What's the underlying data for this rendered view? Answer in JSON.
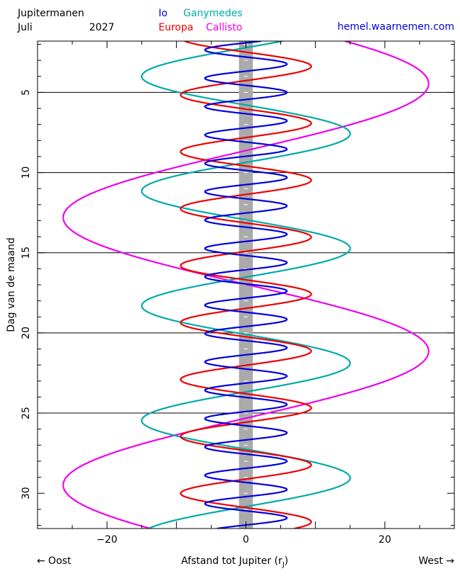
{
  "header": {
    "title": "Jupitermanen",
    "month": "Juli",
    "year": "2027",
    "website": "hemel.waarnemen.com"
  },
  "legend": [
    {
      "name": "Io",
      "color": "#0000dd"
    },
    {
      "name": "Ganymedes",
      "color": "#00aaaa"
    },
    {
      "name": "Europa",
      "color": "#ee0000"
    },
    {
      "name": "Callisto",
      "color": "#ee00ee"
    }
  ],
  "footer": {
    "east": "← Oost",
    "west": "West →",
    "xlabel_main": "Afstand tot Jupiter (r",
    "xlabel_sub": "J",
    "xlabel_close": ")"
  },
  "chart_data": {
    "type": "line",
    "title": "Jupitermanen",
    "xlabel": "Afstand tot Jupiter (rJ)",
    "ylabel": "Dag van de maand",
    "xlim": [
      -30,
      30
    ],
    "ylim": [
      1.8,
      32.2
    ],
    "y_inverted": true,
    "x_ticks": [
      -20,
      0,
      20
    ],
    "y_ticks": [
      5,
      10,
      15,
      20,
      25,
      30
    ],
    "grid_days": [
      5,
      10,
      15,
      20,
      25
    ],
    "jupiter_band_halfwidth": 1,
    "series": [
      {
        "name": "Io",
        "color": "#0000dd",
        "amplitude": 5.9,
        "period_days": 1.769,
        "east_max_day": 2.35,
        "loops_per_half_day": true
      },
      {
        "name": "Europa",
        "color": "#ee0000",
        "amplitude": 9.4,
        "period_days": 3.551,
        "east_max_day": 1.6
      },
      {
        "name": "Ganymedes",
        "color": "#00aaaa",
        "amplitude": 15.0,
        "period_days": 7.155,
        "east_max_day": 4.0
      },
      {
        "name": "Callisto",
        "color": "#ee00ee",
        "amplitude": 26.3,
        "period_days": 16.69,
        "east_max_day": 12.8
      }
    ]
  }
}
